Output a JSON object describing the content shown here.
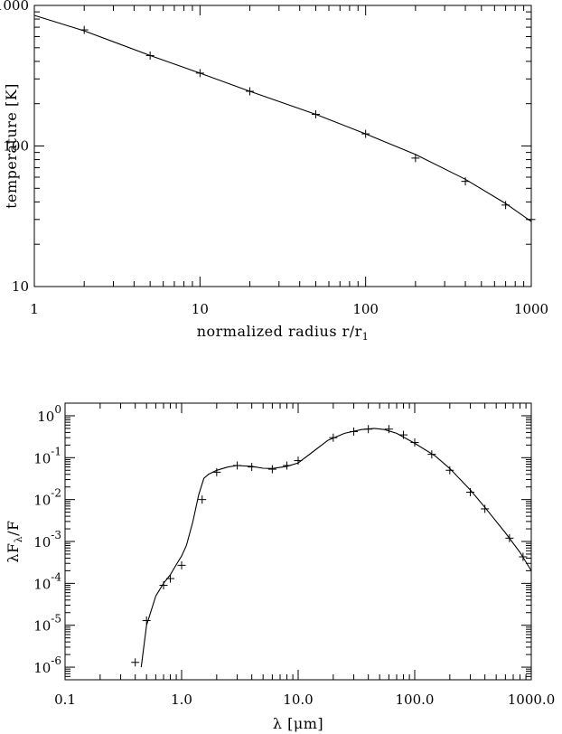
{
  "chart_data": [
    {
      "type": "line",
      "title": "",
      "xlabel": "normalized radius r/r",
      "xlabel_subscript": "1",
      "ylabel": "temperature [K]",
      "xscale": "log",
      "yscale": "log",
      "xlim": [
        1,
        1000
      ],
      "ylim": [
        10,
        1000
      ],
      "x_tick_labels": [
        "1",
        "10",
        "100",
        "1000"
      ],
      "x_tick_values": [
        1,
        10,
        100,
        1000
      ],
      "y_tick_labels": [
        "10",
        "100",
        "1000"
      ],
      "y_tick_values": [
        10,
        100,
        1000
      ],
      "grid": false,
      "series": [
        {
          "style": "line",
          "x": [
            1,
            2,
            5,
            10,
            20,
            50,
            100,
            200,
            400,
            700,
            1000
          ],
          "y": [
            850,
            660,
            440,
            330,
            245,
            168,
            122,
            87,
            58,
            39,
            29
          ]
        },
        {
          "style": "markers",
          "marker": "+",
          "x": [
            2,
            5,
            10,
            20,
            50,
            100,
            200,
            400,
            700,
            1000
          ],
          "y": [
            670,
            440,
            330,
            245,
            168,
            122,
            82,
            56,
            38,
            30
          ]
        }
      ]
    },
    {
      "type": "line",
      "title": "",
      "xlabel": "λ [μm]",
      "ylabel": "λF",
      "ylabel_subscript": "λ",
      "ylabel_suffix": "/F",
      "xscale": "log",
      "yscale": "log",
      "xlim": [
        0.1,
        1000
      ],
      "ylim": [
        5e-07,
        2
      ],
      "x_tick_labels": [
        "0.1",
        "1.0",
        "10.0",
        "100.0",
        "1000.0"
      ],
      "x_tick_values": [
        0.1,
        1,
        10,
        100,
        1000
      ],
      "y_tick_base": "10",
      "y_tick_exponents": [
        "-6",
        "-5",
        "-4",
        "-3",
        "-2",
        "-1",
        "0"
      ],
      "y_tick_values": [
        1e-06,
        1e-05,
        0.0001,
        0.001,
        0.01,
        0.1,
        1
      ],
      "grid": false,
      "series": [
        {
          "style": "line",
          "x": [
            0.45,
            0.5,
            0.6,
            0.7,
            0.8,
            0.9,
            1.0,
            1.1,
            1.25,
            1.4,
            1.55,
            1.7,
            2.0,
            2.5,
            3.0,
            4.0,
            5.0,
            6.0,
            8.0,
            10.0,
            13.0,
            18.0,
            25.0,
            35.0,
            45.0,
            55.0,
            70.0,
            100.0,
            150.0,
            200.0,
            300.0,
            400.0,
            600.0,
            800.0,
            1000.0
          ],
          "y": [
            1e-06,
            1e-05,
            5e-05,
            0.0001,
            0.00016,
            0.00028,
            0.00045,
            0.0008,
            0.003,
            0.013,
            0.032,
            0.04,
            0.05,
            0.06,
            0.065,
            0.062,
            0.056,
            0.055,
            0.062,
            0.075,
            0.13,
            0.26,
            0.38,
            0.47,
            0.5,
            0.47,
            0.38,
            0.22,
            0.11,
            0.055,
            0.017,
            0.0065,
            0.0016,
            0.00055,
            0.0002
          ]
        },
        {
          "style": "markers",
          "marker": "+",
          "x": [
            0.4,
            0.5,
            0.7,
            0.8,
            1.0,
            1.5,
            2.0,
            3.0,
            4.0,
            6.0,
            8.0,
            10.0,
            20.0,
            30.0,
            40.0,
            60.0,
            80.0,
            100.0,
            140.0,
            200.0,
            300.0,
            400.0,
            650.0,
            850.0
          ],
          "y": [
            1.3e-06,
            1.3e-05,
            9e-05,
            0.00013,
            0.00027,
            0.01,
            0.045,
            0.065,
            0.06,
            0.053,
            0.065,
            0.085,
            0.3,
            0.42,
            0.48,
            0.48,
            0.35,
            0.23,
            0.12,
            0.05,
            0.015,
            0.006,
            0.0012,
            0.00043
          ]
        }
      ]
    }
  ]
}
